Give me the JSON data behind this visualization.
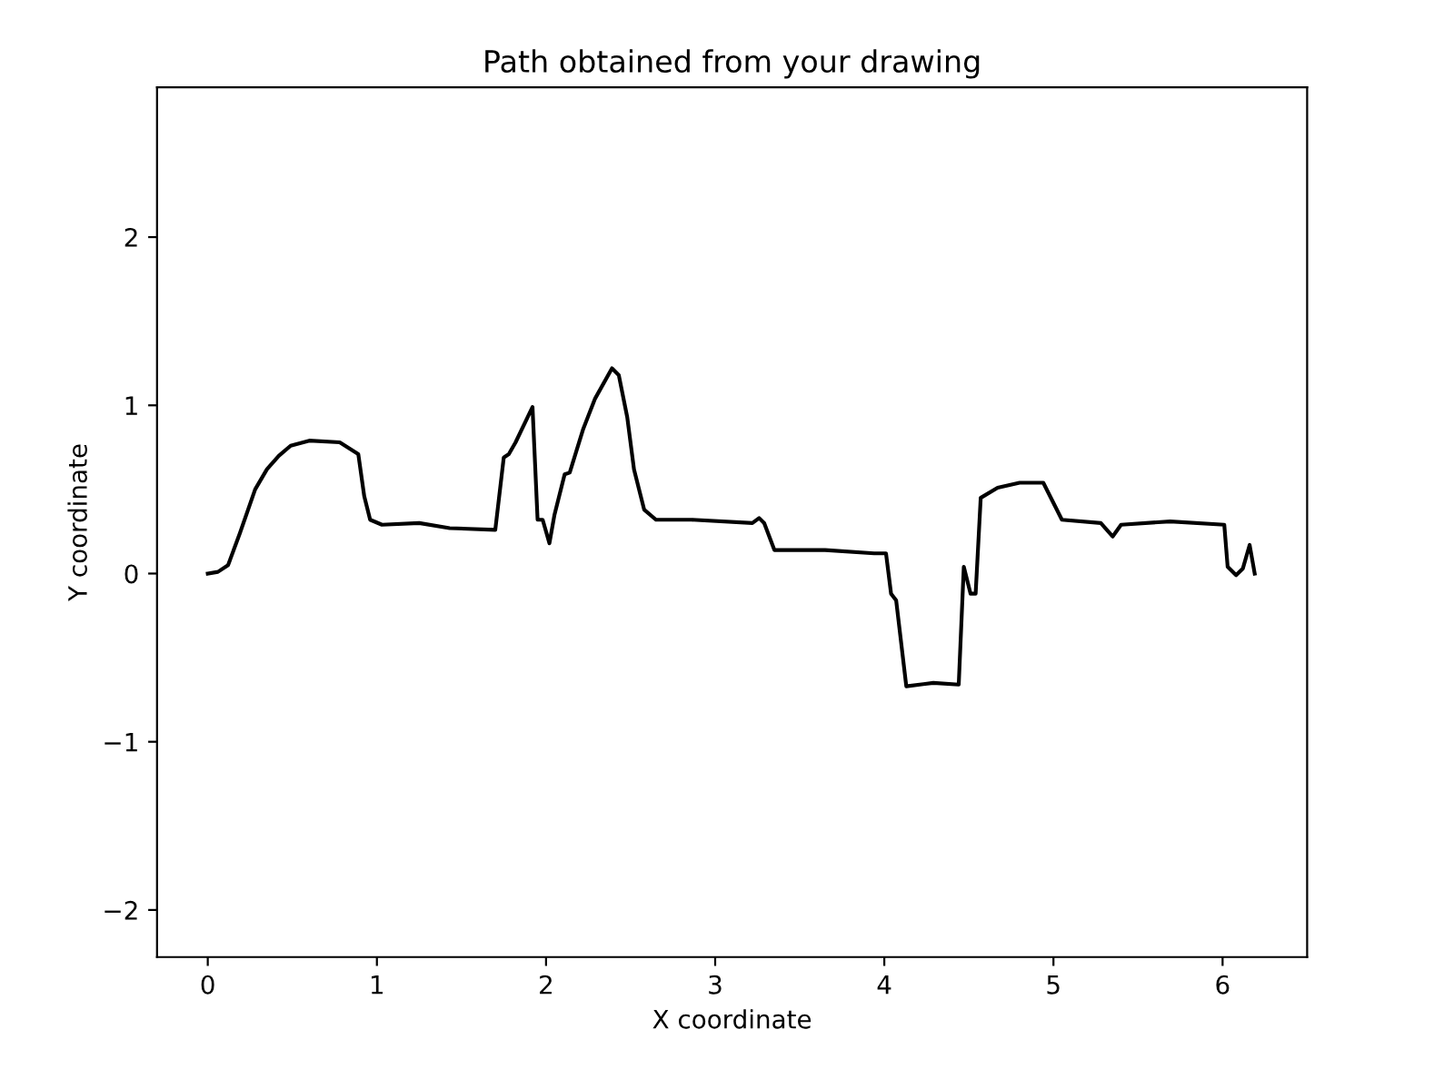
{
  "chart_data": {
    "type": "line",
    "title": "Path obtained from your drawing",
    "xlabel": "X coordinate",
    "ylabel": "Y coordinate",
    "xlim": [
      -0.3,
      6.5
    ],
    "ylim": [
      -2.28,
      2.89
    ],
    "xticks": [
      0,
      1,
      2,
      3,
      4,
      5,
      6
    ],
    "yticks": [
      {
        "value": -2,
        "label": "−2"
      },
      {
        "value": -1,
        "label": "−1"
      },
      0,
      1,
      2
    ],
    "series": [
      {
        "color": "#000000",
        "x": [
          0,
          0.06,
          0.12,
          0.19,
          0.28,
          0.35,
          0.42,
          0.49,
          0.6,
          0.78,
          0.89,
          0.925,
          0.96,
          1.03,
          1.25,
          1.43,
          1.7,
          1.75,
          1.78,
          1.82,
          1.92,
          1.95,
          1.98,
          2.02,
          2.05,
          2.11,
          2.14,
          2.22,
          2.29,
          2.39,
          2.43,
          2.48,
          2.52,
          2.58,
          2.65,
          2.86,
          3.22,
          3.26,
          3.29,
          3.35,
          3.65,
          3.94,
          4.01,
          4.04,
          4.07,
          4.13,
          4.29,
          4.44,
          4.47,
          4.51,
          4.54,
          4.57,
          4.67,
          4.8,
          4.94,
          5.05,
          5.28,
          5.35,
          5.4,
          5.69,
          6.01,
          6.03,
          6.08,
          6.12,
          6.16,
          6.19
        ],
        "values": [
          0,
          0.01,
          0.05,
          0.24,
          0.5,
          0.62,
          0.7,
          0.76,
          0.79,
          0.78,
          0.71,
          0.46,
          0.32,
          0.29,
          0.3,
          0.27,
          0.26,
          0.69,
          0.71,
          0.78,
          0.99,
          0.32,
          0.32,
          0.18,
          0.35,
          0.59,
          0.6,
          0.86,
          1.04,
          1.22,
          1.18,
          0.93,
          0.62,
          0.38,
          0.32,
          0.32,
          0.3,
          0.33,
          0.3,
          0.14,
          0.14,
          0.12,
          0.12,
          -0.12,
          -0.16,
          -0.67,
          -0.65,
          -0.66,
          0.04,
          -0.12,
          -0.12,
          0.45,
          0.51,
          0.54,
          0.54,
          0.32,
          0.3,
          0.22,
          0.29,
          0.31,
          0.29,
          0.04,
          -0.01,
          0.03,
          0.17,
          0.0
        ]
      }
    ]
  }
}
